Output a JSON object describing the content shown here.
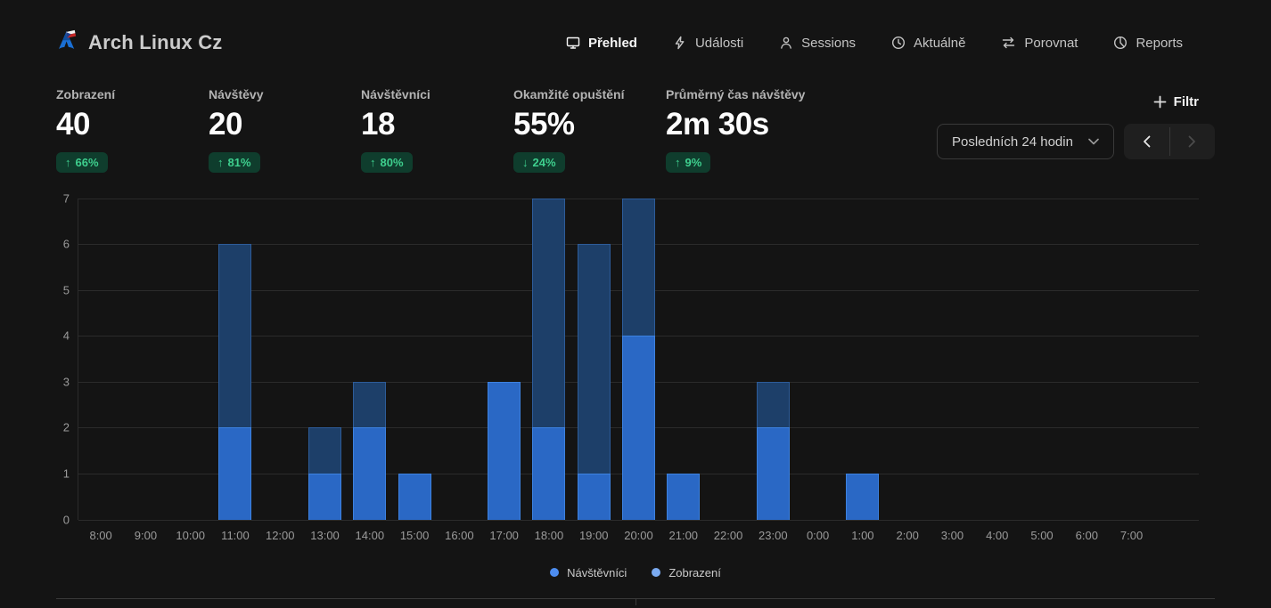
{
  "header": {
    "site_title": "Arch Linux Cz",
    "nav": [
      {
        "label": "Přehled",
        "slug": "prehled",
        "icon": "dashboard-icon",
        "active": true
      },
      {
        "label": "Události",
        "slug": "udalosti",
        "icon": "lightning-icon",
        "active": false
      },
      {
        "label": "Sessions",
        "slug": "sessions",
        "icon": "user-icon",
        "active": false
      },
      {
        "label": "Aktuálně",
        "slug": "aktualne",
        "icon": "clock-icon",
        "active": false
      },
      {
        "label": "Porovnat",
        "slug": "porovnat",
        "icon": "compare-arrows-icon",
        "active": false
      },
      {
        "label": "Reports",
        "slug": "reports",
        "icon": "pie-chart-icon",
        "active": false
      }
    ]
  },
  "stats": [
    {
      "label": "Zobrazení",
      "slug": "zobrazeni",
      "value": "40",
      "change": "66%",
      "direction": "up"
    },
    {
      "label": "Návštěvy",
      "slug": "navstevy",
      "value": "20",
      "change": "81%",
      "direction": "up"
    },
    {
      "label": "Návštěvníci",
      "slug": "navstevnici",
      "value": "18",
      "change": "80%",
      "direction": "up"
    },
    {
      "label": "Okamžité opuštění",
      "slug": "okamzite-opusteni",
      "value": "55%",
      "change": "24%",
      "direction": "down"
    },
    {
      "label": "Průměrný čas návštěvy",
      "slug": "prumerny-cas",
      "value": "2m 30s",
      "change": "9%",
      "direction": "up"
    }
  ],
  "controls": {
    "filter_label": "Filtr",
    "date_range": "Posledních 24 hodin"
  },
  "colors": {
    "badge_bg": "#0f3d2d",
    "badge_text": "#3ecf8e",
    "views_fill": "#1d3f69",
    "views_border": "#2d5c99",
    "visitors_fill": "#2a68c5",
    "visitors_border": "#3d82e0"
  },
  "chart_data": {
    "type": "bar",
    "title": "",
    "xlabel": "",
    "ylabel": "",
    "categories": [
      "8:00",
      "9:00",
      "10:00",
      "11:00",
      "12:00",
      "13:00",
      "14:00",
      "15:00",
      "16:00",
      "17:00",
      "18:00",
      "19:00",
      "20:00",
      "21:00",
      "22:00",
      "23:00",
      "0:00",
      "1:00",
      "2:00",
      "3:00",
      "4:00",
      "5:00",
      "6:00",
      "7:00"
    ],
    "series": [
      {
        "name": "Zobrazení",
        "slug": "zobrazeni",
        "fill": "#1d3f69",
        "border": "#2d5c99",
        "values": [
          0,
          0,
          0,
          6,
          0,
          2,
          3,
          1,
          0,
          3,
          7,
          6,
          7,
          1,
          0,
          3,
          0,
          1,
          0,
          0,
          0,
          0,
          0,
          0
        ]
      },
      {
        "name": "Návštěvníci",
        "slug": "navstevnici",
        "fill": "#2a68c5",
        "border": "#3d82e0",
        "values": [
          0,
          0,
          0,
          2,
          0,
          1,
          2,
          1,
          0,
          3,
          2,
          1,
          4,
          1,
          0,
          2,
          0,
          1,
          0,
          0,
          0,
          0,
          0,
          0
        ]
      }
    ],
    "ylim": [
      0,
      7
    ],
    "yticks": [
      0,
      1,
      2,
      3,
      4,
      5,
      6,
      7
    ],
    "grid": true,
    "bar_style": "overlaid",
    "legend_position": "bottom",
    "legend": [
      {
        "label": "Návštěvníci",
        "color": "#4d8df0"
      },
      {
        "label": "Zobrazení",
        "color": "#7aaaf0"
      }
    ]
  }
}
